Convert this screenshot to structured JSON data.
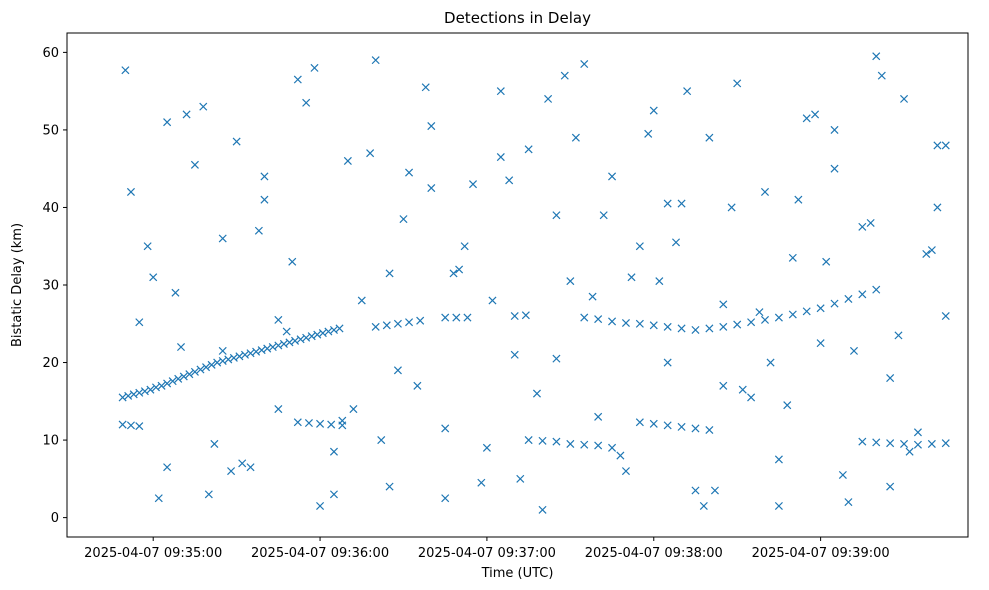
{
  "chart_data": {
    "type": "scatter",
    "title": "Detections in Delay",
    "xlabel": "Time (UTC)",
    "ylabel": "Bistatic Delay (km)",
    "xlim": [
      "2025-04-07 09:34:29",
      "2025-04-07 09:39:53"
    ],
    "ylim": [
      -2.5,
      62.5
    ],
    "xticks": [
      "2025-04-07 09:35:00",
      "2025-04-07 09:36:00",
      "2025-04-07 09:37:00",
      "2025-04-07 09:38:00",
      "2025-04-07 09:39:00"
    ],
    "yticks": [
      "0",
      "10",
      "20",
      "30",
      "40",
      "50",
      "60"
    ],
    "grid": false,
    "marker": "x",
    "colors": {
      "marker": "#1f77b4"
    },
    "series": [
      {
        "x": [
          "2025-04-07 09:34:49",
          "2025-04-07 09:34:51",
          "2025-04-07 09:34:53",
          "2025-04-07 09:34:55",
          "2025-04-07 09:34:57",
          "2025-04-07 09:34:59",
          "2025-04-07 09:35:01",
          "2025-04-07 09:35:03",
          "2025-04-07 09:35:05",
          "2025-04-07 09:35:07",
          "2025-04-07 09:35:09",
          "2025-04-07 09:35:11",
          "2025-04-07 09:35:13",
          "2025-04-07 09:35:15",
          "2025-04-07 09:35:17",
          "2025-04-07 09:35:19",
          "2025-04-07 09:35:21",
          "2025-04-07 09:35:23",
          "2025-04-07 09:35:25",
          "2025-04-07 09:35:27",
          "2025-04-07 09:35:29",
          "2025-04-07 09:35:31",
          "2025-04-07 09:35:33",
          "2025-04-07 09:35:35",
          "2025-04-07 09:35:37",
          "2025-04-07 09:35:39",
          "2025-04-07 09:35:41",
          "2025-04-07 09:35:43",
          "2025-04-07 09:35:45",
          "2025-04-07 09:35:47",
          "2025-04-07 09:35:49",
          "2025-04-07 09:35:51",
          "2025-04-07 09:35:53",
          "2025-04-07 09:35:55",
          "2025-04-07 09:35:57",
          "2025-04-07 09:35:59",
          "2025-04-07 09:36:01",
          "2025-04-07 09:36:03",
          "2025-04-07 09:36:05",
          "2025-04-07 09:36:07",
          "2025-04-07 09:36:20",
          "2025-04-07 09:36:24",
          "2025-04-07 09:36:28",
          "2025-04-07 09:36:32",
          "2025-04-07 09:36:36",
          "2025-04-07 09:36:45",
          "2025-04-07 09:36:49",
          "2025-04-07 09:36:53",
          "2025-04-07 09:37:10",
          "2025-04-07 09:37:14",
          "2025-04-07 09:37:35",
          "2025-04-07 09:37:40",
          "2025-04-07 09:37:45",
          "2025-04-07 09:37:50",
          "2025-04-07 09:37:55",
          "2025-04-07 09:38:00",
          "2025-04-07 09:38:05",
          "2025-04-07 09:38:10",
          "2025-04-07 09:38:15",
          "2025-04-07 09:38:20",
          "2025-04-07 09:38:25",
          "2025-04-07 09:38:30",
          "2025-04-07 09:38:35",
          "2025-04-07 09:38:40",
          "2025-04-07 09:38:45",
          "2025-04-07 09:38:50",
          "2025-04-07 09:38:55",
          "2025-04-07 09:39:00",
          "2025-04-07 09:39:05",
          "2025-04-07 09:39:10",
          "2025-04-07 09:39:15",
          "2025-04-07 09:39:20",
          "2025-04-07 09:34:49",
          "2025-04-07 09:34:52",
          "2025-04-07 09:34:55",
          "2025-04-07 09:35:52",
          "2025-04-07 09:35:56",
          "2025-04-07 09:36:00",
          "2025-04-07 09:36:04",
          "2025-04-07 09:36:08",
          "2025-04-07 09:37:15",
          "2025-04-07 09:37:20",
          "2025-04-07 09:37:25",
          "2025-04-07 09:37:30",
          "2025-04-07 09:37:35",
          "2025-04-07 09:37:40",
          "2025-04-07 09:37:55",
          "2025-04-07 09:38:00",
          "2025-04-07 09:38:05",
          "2025-04-07 09:38:10",
          "2025-04-07 09:38:15",
          "2025-04-07 09:38:20",
          "2025-04-07 09:39:15",
          "2025-04-07 09:39:20",
          "2025-04-07 09:39:25",
          "2025-04-07 09:39:30",
          "2025-04-07 09:39:35",
          "2025-04-07 09:39:40",
          "2025-04-07 09:39:45",
          "2025-04-07 09:34:50",
          "2025-04-07 09:35:00",
          "2025-04-07 09:35:05",
          "2025-04-07 09:35:10",
          "2025-04-07 09:35:15",
          "2025-04-07 09:35:20",
          "2025-04-07 09:35:25",
          "2025-04-07 09:35:30",
          "2025-04-07 09:35:35",
          "2025-04-07 09:35:40",
          "2025-04-07 09:35:45",
          "2025-04-07 09:35:50",
          "2025-04-07 09:35:55",
          "2025-04-07 09:36:05",
          "2025-04-07 09:36:10",
          "2025-04-07 09:36:15",
          "2025-04-07 09:36:20",
          "2025-04-07 09:36:25",
          "2025-04-07 09:36:30",
          "2025-04-07 09:36:35",
          "2025-04-07 09:36:40",
          "2025-04-07 09:36:45",
          "2025-04-07 09:36:50",
          "2025-04-07 09:36:55",
          "2025-04-07 09:37:00",
          "2025-04-07 09:37:05",
          "2025-04-07 09:37:10",
          "2025-04-07 09:37:15",
          "2025-04-07 09:37:20",
          "2025-04-07 09:37:25",
          "2025-04-07 09:37:30",
          "2025-04-07 09:37:35",
          "2025-04-07 09:37:40",
          "2025-04-07 09:37:45",
          "2025-04-07 09:37:50",
          "2025-04-07 09:37:55",
          "2025-04-07 09:38:00",
          "2025-04-07 09:38:05",
          "2025-04-07 09:38:10",
          "2025-04-07 09:38:15",
          "2025-04-07 09:38:20",
          "2025-04-07 09:38:25",
          "2025-04-07 09:38:30",
          "2025-04-07 09:38:35",
          "2025-04-07 09:38:40",
          "2025-04-07 09:38:45",
          "2025-04-07 09:38:50",
          "2025-04-07 09:38:55",
          "2025-04-07 09:39:00",
          "2025-04-07 09:39:05",
          "2025-04-07 09:39:10",
          "2025-04-07 09:39:15",
          "2025-04-07 09:39:20",
          "2025-04-07 09:39:25",
          "2025-04-07 09:39:30",
          "2025-04-07 09:39:35",
          "2025-04-07 09:39:40",
          "2025-04-07 09:39:45",
          "2025-04-07 09:34:52",
          "2025-04-07 09:35:02",
          "2025-04-07 09:35:08",
          "2025-04-07 09:35:18",
          "2025-04-07 09:35:28",
          "2025-04-07 09:35:38",
          "2025-04-07 09:35:48",
          "2025-04-07 09:35:58",
          "2025-04-07 09:36:08",
          "2025-04-07 09:36:18",
          "2025-04-07 09:36:28",
          "2025-04-07 09:36:38",
          "2025-04-07 09:36:48",
          "2025-04-07 09:36:58",
          "2025-04-07 09:37:08",
          "2025-04-07 09:37:18",
          "2025-04-07 09:37:28",
          "2025-04-07 09:37:38",
          "2025-04-07 09:37:48",
          "2025-04-07 09:37:58",
          "2025-04-07 09:38:08",
          "2025-04-07 09:38:18",
          "2025-04-07 09:38:28",
          "2025-04-07 09:38:38",
          "2025-04-07 09:38:48",
          "2025-04-07 09:38:58",
          "2025-04-07 09:39:08",
          "2025-04-07 09:39:18",
          "2025-04-07 09:39:28",
          "2025-04-07 09:39:38",
          "2025-04-07 09:34:55",
          "2025-04-07 09:35:12",
          "2025-04-07 09:35:32",
          "2025-04-07 09:35:52",
          "2025-04-07 09:36:12",
          "2025-04-07 09:36:32",
          "2025-04-07 09:36:52",
          "2025-04-07 09:37:12",
          "2025-04-07 09:37:32",
          "2025-04-07 09:37:52",
          "2025-04-07 09:38:12",
          "2025-04-07 09:38:32",
          "2025-04-07 09:38:52",
          "2025-04-07 09:39:12",
          "2025-04-07 09:39:32",
          "2025-04-07 09:39:42",
          "2025-04-07 09:35:05",
          "2025-04-07 09:35:25",
          "2025-04-07 09:35:45",
          "2025-04-07 09:36:05",
          "2025-04-07 09:36:25",
          "2025-04-07 09:36:45",
          "2025-04-07 09:37:05",
          "2025-04-07 09:37:25",
          "2025-04-07 09:37:45",
          "2025-04-07 09:38:05",
          "2025-04-07 09:38:25",
          "2025-04-07 09:38:45",
          "2025-04-07 09:39:05",
          "2025-04-07 09:39:25",
          "2025-04-07 09:39:45",
          "2025-04-07 09:34:58",
          "2025-04-07 09:35:22",
          "2025-04-07 09:35:40",
          "2025-04-07 09:36:00",
          "2025-04-07 09:36:22",
          "2025-04-07 09:36:40",
          "2025-04-07 09:37:02",
          "2025-04-07 09:37:22",
          "2025-04-07 09:37:42",
          "2025-04-07 09:38:02",
          "2025-04-07 09:38:22",
          "2025-04-07 09:38:42",
          "2025-04-07 09:39:02",
          "2025-04-07 09:39:22",
          "2025-04-07 09:39:42"
        ],
        "y": [
          15.5,
          15.7,
          15.9,
          16.1,
          16.3,
          16.5,
          16.8,
          17.0,
          17.3,
          17.6,
          17.9,
          18.2,
          18.5,
          18.8,
          19.1,
          19.4,
          19.7,
          20.0,
          20.2,
          20.4,
          20.6,
          20.8,
          21.0,
          21.2,
          21.4,
          21.6,
          21.8,
          22.0,
          22.2,
          22.4,
          22.6,
          22.8,
          23.0,
          23.2,
          23.4,
          23.6,
          23.8,
          24.0,
          24.2,
          24.4,
          24.6,
          24.8,
          25.0,
          25.2,
          25.4,
          25.8,
          25.8,
          25.8,
          26.0,
          26.1,
          25.8,
          25.6,
          25.3,
          25.1,
          25.0,
          24.8,
          24.6,
          24.4,
          24.2,
          24.4,
          24.6,
          24.9,
          25.2,
          25.5,
          25.8,
          26.2,
          26.6,
          27.0,
          27.6,
          28.2,
          28.8,
          29.4,
          12.0,
          11.9,
          11.8,
          12.3,
          12.2,
          12.1,
          12.0,
          11.9,
          10.0,
          9.9,
          9.8,
          9.5,
          9.4,
          9.3,
          12.3,
          12.1,
          11.9,
          11.7,
          11.5,
          11.3,
          9.8,
          9.7,
          9.6,
          9.5,
          9.4,
          9.5,
          9.6,
          57.7,
          31.0,
          51.0,
          22.0,
          45.5,
          3.0,
          36.0,
          48.5,
          6.5,
          41.0,
          14.0,
          33.0,
          53.5,
          8.5,
          46.0,
          28.0,
          59.0,
          4.0,
          38.5,
          17.0,
          50.5,
          2.5,
          32.0,
          43.0,
          9.0,
          55.0,
          21.0,
          47.5,
          1.0,
          39.0,
          30.5,
          58.5,
          13.0,
          44.0,
          6.0,
          35.0,
          52.5,
          20.0,
          40.5,
          3.5,
          49.0,
          27.5,
          56.0,
          15.5,
          42.0,
          7.5,
          33.5,
          51.5,
          22.5,
          45.0,
          2.0,
          37.5,
          59.5,
          18.0,
          54.0,
          11.0,
          34.5,
          48.0,
          42.0,
          2.5,
          29.0,
          53.0,
          6.0,
          37.0,
          24.0,
          58.0,
          12.5,
          47.0,
          19.0,
          55.5,
          31.5,
          4.5,
          43.5,
          16.0,
          57.0,
          28.5,
          8.0,
          49.5,
          35.5,
          1.5,
          40.0,
          26.5,
          14.5,
          52.0,
          5.5,
          38.0,
          23.5,
          34.0,
          25.2,
          52.0,
          7.0,
          56.5,
          14.0,
          44.5,
          35.0,
          5.0,
          49.0,
          31.0,
          55.0,
          16.5,
          41.0,
          21.5,
          8.5,
          40.0,
          6.5,
          21.5,
          25.5,
          3.0,
          31.5,
          11.5,
          46.5,
          20.5,
          9.0,
          40.5,
          17.0,
          1.5,
          50.0,
          4.0,
          26.0,
          35.0,
          9.5,
          44.0,
          1.5,
          10.0,
          42.5,
          28.0,
          54.0,
          39.0,
          30.5,
          3.5,
          20.0,
          33.0,
          57.0,
          48.0
        ]
      }
    ]
  }
}
